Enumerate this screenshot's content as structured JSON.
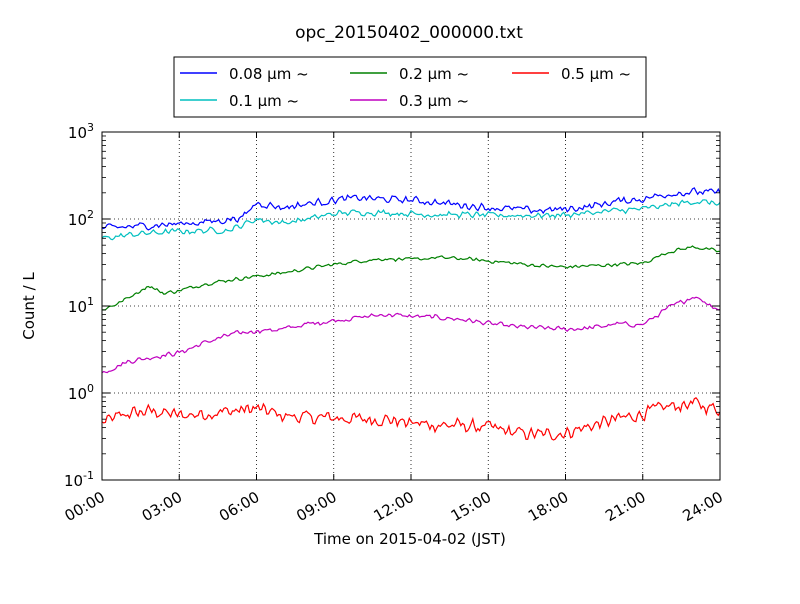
{
  "chart_data": {
    "type": "line",
    "title": "opc_20150402_000000.txt",
    "xlabel": "Time on 2015-04-02 (JST)",
    "ylabel": "Count / L",
    "yscale": "log",
    "ylim": [
      0.1,
      1000
    ],
    "xlim": [
      "00:00",
      "24:00"
    ],
    "x_tick_labels": [
      "00:00",
      "03:00",
      "06:00",
      "09:00",
      "12:00",
      "15:00",
      "18:00",
      "21:00",
      "24:00"
    ],
    "y_tick_labels": [
      {
        "base": "10",
        "exp": "-1"
      },
      {
        "base": "10",
        "exp": "0"
      },
      {
        "base": "10",
        "exp": "1"
      },
      {
        "base": "10",
        "exp": "2"
      },
      {
        "base": "10",
        "exp": "3"
      }
    ],
    "grid": true,
    "legend_position": "top, above plot",
    "legend_columns": 3,
    "x_unit_note": "hours of day",
    "series": [
      {
        "name": "0.08 μm ~",
        "color": "#0000ff",
        "noise": 0.12,
        "keypoints": [
          [
            0,
            78
          ],
          [
            2,
            85
          ],
          [
            3,
            88
          ],
          [
            4.5,
            95
          ],
          [
            5.5,
            105
          ],
          [
            6,
            155
          ],
          [
            7,
            135
          ],
          [
            8,
            150
          ],
          [
            9,
            165
          ],
          [
            10,
            175
          ],
          [
            11,
            168
          ],
          [
            12,
            165
          ],
          [
            13,
            155
          ],
          [
            14,
            145
          ],
          [
            15,
            135
          ],
          [
            16,
            130
          ],
          [
            17,
            125
          ],
          [
            18,
            130
          ],
          [
            19,
            140
          ],
          [
            20,
            160
          ],
          [
            21,
            170
          ],
          [
            22,
            195
          ],
          [
            23,
            205
          ],
          [
            24,
            200
          ]
        ]
      },
      {
        "name": "0.1 μm ~",
        "color": "#00bfbf",
        "noise": 0.1,
        "keypoints": [
          [
            0,
            60
          ],
          [
            1.5,
            68
          ],
          [
            3,
            72
          ],
          [
            5,
            75
          ],
          [
            6,
            100
          ],
          [
            7,
            90
          ],
          [
            8,
            100
          ],
          [
            9,
            115
          ],
          [
            10,
            120
          ],
          [
            11,
            118
          ],
          [
            12,
            115
          ],
          [
            13,
            112
          ],
          [
            14,
            112
          ],
          [
            15,
            110
          ],
          [
            16,
            110
          ],
          [
            17,
            110
          ],
          [
            18,
            112
          ],
          [
            19,
            118
          ],
          [
            20,
            125
          ],
          [
            21,
            130
          ],
          [
            22,
            145
          ],
          [
            23,
            160
          ],
          [
            24,
            150
          ]
        ]
      },
      {
        "name": "0.2 μm ~",
        "color": "#008000",
        "noise": 0.06,
        "keypoints": [
          [
            0,
            9
          ],
          [
            0.7,
            11
          ],
          [
            1.8,
            17
          ],
          [
            2.4,
            14
          ],
          [
            3,
            15
          ],
          [
            4,
            18
          ],
          [
            5,
            20
          ],
          [
            6,
            22
          ],
          [
            7,
            24
          ],
          [
            8,
            27
          ],
          [
            9,
            30
          ],
          [
            10,
            33
          ],
          [
            11,
            35
          ],
          [
            12,
            34
          ],
          [
            13,
            36
          ],
          [
            14,
            35
          ],
          [
            15,
            33
          ],
          [
            16,
            31
          ],
          [
            17,
            29
          ],
          [
            18,
            28
          ],
          [
            19,
            29
          ],
          [
            20,
            30
          ],
          [
            21,
            31
          ],
          [
            22,
            42
          ],
          [
            23,
            48
          ],
          [
            24,
            42
          ]
        ]
      },
      {
        "name": "0.3 μm ~",
        "color": "#bf00bf",
        "noise": 0.08,
        "keypoints": [
          [
            0,
            1.7
          ],
          [
            1,
            2.3
          ],
          [
            2,
            2.6
          ],
          [
            3,
            2.9
          ],
          [
            4,
            3.8
          ],
          [
            5,
            4.7
          ],
          [
            6,
            5.2
          ],
          [
            7,
            5.4
          ],
          [
            8,
            6.2
          ],
          [
            9,
            6.8
          ],
          [
            10,
            7.4
          ],
          [
            11,
            8.0
          ],
          [
            12,
            7.6
          ],
          [
            13,
            7.4
          ],
          [
            14,
            7.0
          ],
          [
            15,
            6.3
          ],
          [
            16,
            5.8
          ],
          [
            17,
            5.6
          ],
          [
            18,
            5.4
          ],
          [
            19,
            5.6
          ],
          [
            20,
            6.2
          ],
          [
            21,
            6.1
          ],
          [
            22,
            9.5
          ],
          [
            23,
            13
          ],
          [
            24,
            9
          ]
        ]
      },
      {
        "name": "0.5 μm ~",
        "color": "#ff0000",
        "noise": 0.22,
        "keypoints": [
          [
            0,
            0.45
          ],
          [
            1,
            0.58
          ],
          [
            2,
            0.62
          ],
          [
            3,
            0.55
          ],
          [
            4,
            0.58
          ],
          [
            5,
            0.62
          ],
          [
            6,
            0.66
          ],
          [
            7,
            0.55
          ],
          [
            8,
            0.52
          ],
          [
            9,
            0.52
          ],
          [
            10,
            0.5
          ],
          [
            11,
            0.5
          ],
          [
            12,
            0.45
          ],
          [
            13,
            0.43
          ],
          [
            14,
            0.42
          ],
          [
            15,
            0.4
          ],
          [
            16,
            0.35
          ],
          [
            17,
            0.33
          ],
          [
            18,
            0.35
          ],
          [
            19,
            0.42
          ],
          [
            20,
            0.5
          ],
          [
            21,
            0.58
          ],
          [
            22,
            0.7
          ],
          [
            23,
            0.75
          ],
          [
            24,
            0.65
          ]
        ]
      }
    ]
  }
}
